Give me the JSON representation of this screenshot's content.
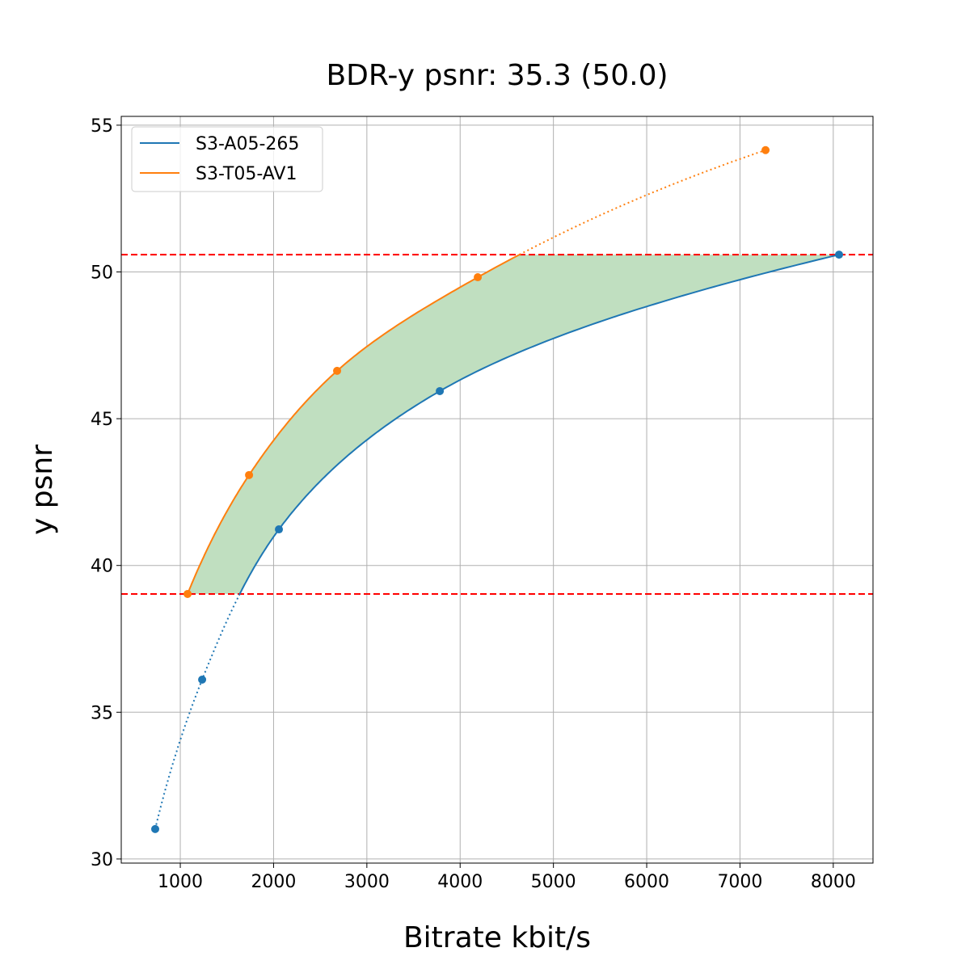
{
  "chart_data": {
    "type": "line",
    "title": "BDR-y psnr: 35.3 (50.0)",
    "xlabel": "Bitrate kbit/s",
    "ylabel": "y psnr",
    "xlim": [
      367,
      8426
    ],
    "ylim": [
      29.86,
      55.3
    ],
    "xticks": [
      1000,
      2000,
      3000,
      4000,
      5000,
      6000,
      7000,
      8000
    ],
    "yticks": [
      30,
      35,
      40,
      45,
      50,
      55
    ],
    "grid": true,
    "legend_position": "top-left",
    "series": [
      {
        "name": "S3-A05-265",
        "color": "#1f77b4",
        "x": [
          731,
          1234,
          2057,
          3782,
          8062
        ],
        "y": [
          31.02,
          36.11,
          41.23,
          45.94,
          50.59
        ]
      },
      {
        "name": "S3-T05-AV1",
        "color": "#ff7f0e",
        "x": [
          1078,
          1737,
          2681,
          4189,
          7274
        ],
        "y": [
          39.03,
          43.08,
          46.63,
          49.82,
          54.15
        ]
      }
    ],
    "reference_lines": {
      "y": [
        50.59,
        39.03
      ],
      "color": "#ff0000",
      "style": "dashed"
    },
    "fill": {
      "between_y": [
        39.03,
        50.59
      ],
      "color": "#c0dfc0"
    }
  }
}
